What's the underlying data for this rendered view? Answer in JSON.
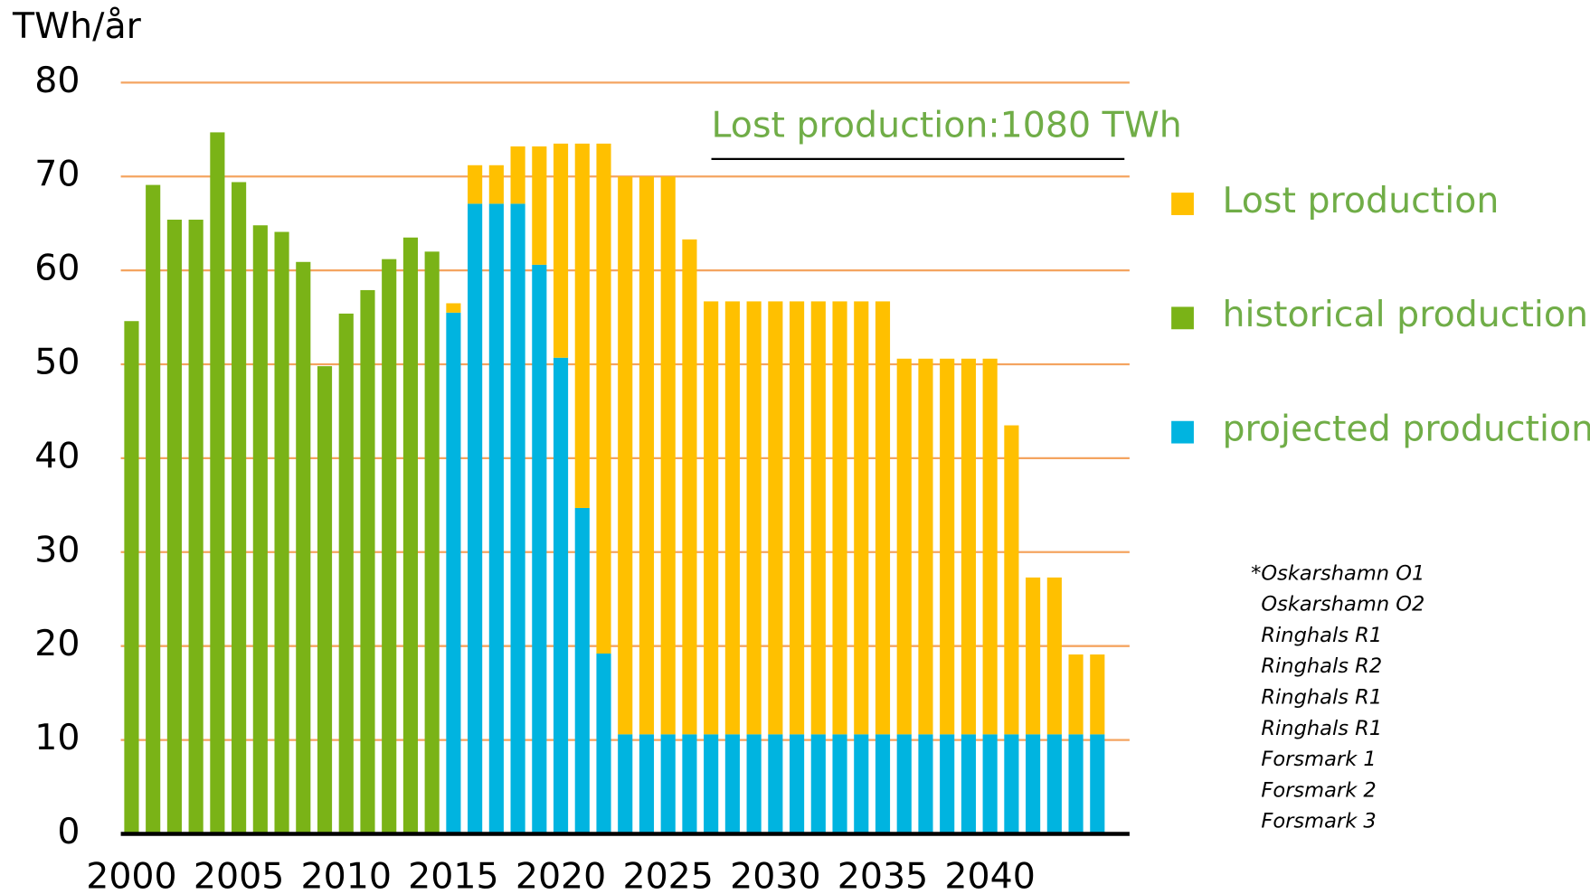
{
  "chart_data": {
    "type": "bar",
    "stacked": true,
    "y_axis_label": "TWh/år",
    "annotation": "Lost production:1080 TWh",
    "notes": [
      "*Oskarshamn O1",
      "Oskarshamn O2",
      "Ringhals R1",
      "Ringhals R2",
      "Ringhals R1",
      "Ringhals R1",
      "Forsmark 1",
      "Forsmark 2",
      "Forsmark 3"
    ],
    "x": [
      2000,
      2001,
      2002,
      2003,
      2004,
      2005,
      2006,
      2007,
      2008,
      2009,
      2010,
      2011,
      2012,
      2013,
      2014,
      2015,
      2016,
      2017,
      2018,
      2019,
      2020,
      2021,
      2022,
      2023,
      2024,
      2025,
      2026,
      2027,
      2028,
      2029,
      2030,
      2031,
      2032,
      2033,
      2034,
      2035,
      2036,
      2037,
      2038,
      2039,
      2040,
      2041,
      2042,
      2043,
      2044,
      2045
    ],
    "xlim": [
      1999.5,
      2046.5
    ],
    "xticks": [
      2000,
      2005,
      2010,
      2015,
      2020,
      2025,
      2030,
      2035,
      2040
    ],
    "ylim": [
      0,
      80
    ],
    "yticks": [
      0,
      10,
      20,
      30,
      40,
      50,
      60,
      70,
      80
    ],
    "grid": true,
    "legend": "right",
    "series": [
      {
        "name": "Lost production",
        "color": "#ffc000",
        "values": [
          null,
          null,
          null,
          null,
          null,
          null,
          null,
          null,
          null,
          null,
          null,
          null,
          null,
          null,
          null,
          1.0,
          4.1,
          4.1,
          6.1,
          12.6,
          22.8,
          38.8,
          54.3,
          59.4,
          59.4,
          59.4,
          52.7,
          46.1,
          46.1,
          46.1,
          46.1,
          46.1,
          46.1,
          46.1,
          46.1,
          46.1,
          40.0,
          40.0,
          40.0,
          40.0,
          40.0,
          32.9,
          16.7,
          16.7,
          8.5,
          8.5
        ]
      },
      {
        "name": "historical production",
        "color": "#7ab317",
        "values": [
          54.6,
          69.1,
          65.4,
          65.4,
          74.7,
          69.4,
          64.8,
          64.1,
          60.9,
          49.8,
          55.4,
          57.9,
          61.2,
          63.5,
          62.0,
          null,
          null,
          null,
          null,
          null,
          null,
          null,
          null,
          null,
          null,
          null,
          null,
          null,
          null,
          null,
          null,
          null,
          null,
          null,
          null,
          null,
          null,
          null,
          null,
          null,
          null,
          null,
          null,
          null,
          null,
          null
        ]
      },
      {
        "name": "projected production",
        "color": "#00b4e0",
        "values": [
          null,
          null,
          null,
          null,
          null,
          null,
          null,
          null,
          null,
          null,
          null,
          null,
          null,
          null,
          null,
          55.5,
          67.1,
          67.1,
          67.1,
          60.6,
          50.7,
          34.7,
          19.2,
          10.6,
          10.6,
          10.6,
          10.6,
          10.6,
          10.6,
          10.6,
          10.6,
          10.6,
          10.6,
          10.6,
          10.6,
          10.6,
          10.6,
          10.6,
          10.6,
          10.6,
          10.6,
          10.6,
          10.6,
          10.6,
          10.6,
          10.6
        ]
      }
    ]
  }
}
